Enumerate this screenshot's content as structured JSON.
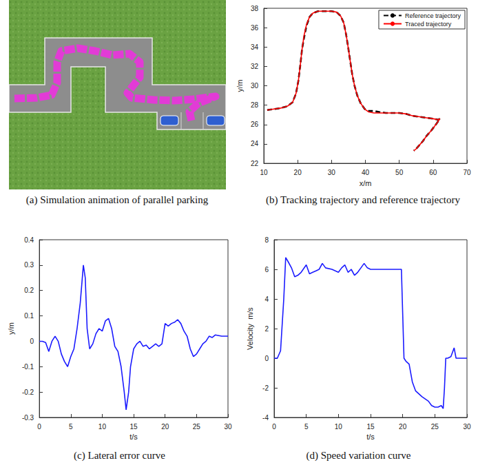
{
  "image_panel": {
    "caption": "(a) Simulation animation of parallel parking"
  },
  "chart_data": [
    {
      "type": "line",
      "title": "(b) Tracking trajectory and reference trajectory",
      "x_label": "x/m",
      "y_label": "y/m",
      "xlim": [
        10,
        70
      ],
      "xticks": [
        10,
        20,
        30,
        40,
        50,
        60,
        70
      ],
      "ylim": [
        22,
        38
      ],
      "yticks": [
        22,
        24,
        26,
        28,
        30,
        32,
        34,
        36,
        38
      ],
      "grid": false,
      "legend": "upper right",
      "series": [
        {
          "name": "Reference trajectory",
          "color": "#000000",
          "line_style": "dashed",
          "x": [
            11,
            13,
            15,
            17,
            18.5,
            19.5,
            20.2,
            20.8,
            21.3,
            21.9,
            22.6,
            23.5,
            24.5,
            26,
            28,
            30,
            31.5,
            32.7,
            33.6,
            34.3,
            34.9,
            35.5,
            36.1,
            36.8,
            37.6,
            38.6,
            39.8,
            41,
            42.5,
            44,
            46,
            48,
            50,
            52,
            54,
            56,
            58,
            60,
            61.5,
            62,
            61,
            59.5,
            58,
            57,
            56,
            55,
            54.3
          ],
          "values": [
            27.5,
            27.6,
            27.7,
            27.9,
            28.3,
            29.2,
            30.5,
            32.2,
            33.8,
            35.0,
            36.2,
            37.1,
            37.5,
            37.7,
            37.7,
            37.7,
            37.6,
            37.2,
            36.5,
            35.3,
            34,
            32.6,
            31.2,
            30,
            29,
            28.2,
            27.6,
            27.4,
            27.4,
            27.3,
            27.2,
            27.2,
            27.2,
            27.1,
            26.9,
            26.8,
            26.7,
            26.6,
            26.5,
            26.6,
            26.1,
            25.4,
            24.8,
            24.3,
            23.9,
            23.5,
            23.3
          ]
        },
        {
          "name": "Traced trajectory",
          "color": "#ff0000",
          "line_style": "solid",
          "x": [
            11,
            13,
            15,
            17,
            18.5,
            19.5,
            20.2,
            20.8,
            21.3,
            21.9,
            22.6,
            23.5,
            24.5,
            26,
            28,
            30,
            31.5,
            32.7,
            33.6,
            34.3,
            34.9,
            35.5,
            36.1,
            36.8,
            37.6,
            38.6,
            39.8,
            41,
            42.5,
            44,
            46,
            48,
            50,
            52,
            54,
            56,
            58,
            60,
            61.5,
            62,
            61,
            59.5,
            58,
            57,
            56,
            55,
            54.3
          ],
          "values": [
            27.5,
            27.6,
            27.7,
            27.9,
            28.3,
            29.2,
            30.5,
            32.2,
            33.8,
            35.2,
            36.3,
            37.1,
            37.5,
            37.7,
            37.7,
            37.7,
            37.6,
            37.2,
            36.5,
            35.3,
            34,
            32.6,
            31.2,
            30,
            29,
            28.2,
            27.6,
            27.3,
            27.2,
            27.2,
            27.2,
            27.2,
            27.2,
            27.1,
            26.9,
            26.8,
            26.7,
            26.6,
            26.5,
            26.6,
            26.1,
            25.4,
            24.8,
            24.3,
            23.9,
            23.5,
            23.3
          ]
        }
      ]
    },
    {
      "type": "line",
      "title": "(c) Lateral error curve",
      "x_label": "t/s",
      "y_label": "y/m",
      "xlim": [
        0,
        30
      ],
      "xticks": [
        0,
        5,
        10,
        15,
        20,
        25,
        30
      ],
      "ylim": [
        -0.3,
        0.4
      ],
      "yticks": [
        -0.3,
        -0.2,
        -0.1,
        0,
        0.1,
        0.2,
        0.3,
        0.4
      ],
      "grid": false,
      "series": [
        {
          "color": "#1a1aff",
          "line_style": "solid",
          "x": [
            0,
            0.5,
            1,
            1.5,
            2,
            2.5,
            3,
            3.5,
            4,
            4.5,
            5,
            5.5,
            6,
            6.5,
            7,
            7.3,
            7.6,
            8,
            8.5,
            9,
            9.5,
            10,
            10.5,
            11,
            11.5,
            12,
            12.5,
            13,
            13.5,
            13.8,
            14.2,
            14.5,
            15,
            15.5,
            16,
            16.5,
            17,
            17.5,
            18,
            18.5,
            19,
            19.5,
            20,
            20.5,
            21,
            21.5,
            22,
            22.5,
            23,
            23.5,
            24,
            24.5,
            25,
            25.5,
            26,
            26.5,
            27,
            27.5,
            28,
            29,
            30
          ],
          "values": [
            0,
            0,
            -0.005,
            -0.04,
            0,
            0.02,
            0,
            -0.05,
            -0.08,
            -0.1,
            -0.06,
            -0.03,
            0.05,
            0.15,
            0.3,
            0.25,
            0.05,
            -0.03,
            -0.01,
            0.03,
            0.05,
            0.04,
            0.08,
            0.09,
            0.05,
            -0.02,
            -0.04,
            -0.1,
            -0.2,
            -0.27,
            -0.2,
            -0.1,
            -0.03,
            -0.01,
            0,
            -0.02,
            -0.015,
            -0.03,
            -0.02,
            -0.01,
            -0.02,
            -0.01,
            0.07,
            0.06,
            0.07,
            0.075,
            0.085,
            0.07,
            0.04,
            0.02,
            -0.03,
            -0.06,
            -0.05,
            -0.03,
            -0.01,
            0,
            0.02,
            0.015,
            0.025,
            0.02,
            0.02
          ]
        }
      ]
    },
    {
      "type": "line",
      "title": "(d) Speed variation curve",
      "x_label": "t/s",
      "y_label": "Velocity  m/s",
      "xlim": [
        0,
        30
      ],
      "xticks": [
        0,
        5,
        10,
        15,
        20,
        25,
        30
      ],
      "ylim": [
        -4,
        8
      ],
      "yticks": [
        -4,
        -2,
        0,
        2,
        4,
        6,
        8
      ],
      "grid": false,
      "series": [
        {
          "color": "#1a1aff",
          "line_style": "solid",
          "x": [
            0,
            0.5,
            1,
            1.5,
            1.8,
            2.2,
            2.7,
            3.2,
            3.7,
            4.2,
            5,
            5.5,
            6,
            6.5,
            7,
            7.5,
            8,
            9,
            10,
            10.5,
            11,
            11.5,
            12,
            12.5,
            13,
            13.5,
            14,
            14.5,
            15,
            16,
            17,
            18,
            19,
            19.8,
            20,
            20.2,
            20.5,
            21,
            21.5,
            22,
            23,
            24,
            24.5,
            25,
            25.5,
            26,
            26.3,
            26.5,
            26.7,
            27,
            27.5,
            28,
            28.3,
            29,
            30
          ],
          "values": [
            0,
            0,
            0.5,
            4,
            6.8,
            6.5,
            6.1,
            5.5,
            5.6,
            5.8,
            6.3,
            5.7,
            5.8,
            5.9,
            6.0,
            6.4,
            6.1,
            6.0,
            5.8,
            6.1,
            6.3,
            5.8,
            6.0,
            5.6,
            5.8,
            6.1,
            6.4,
            6.1,
            6.0,
            6.0,
            6.0,
            6.0,
            6.0,
            6.0,
            3,
            0,
            -0.2,
            -0.4,
            -1.6,
            -2.2,
            -2.6,
            -2.9,
            -3.2,
            -3.3,
            -3.3,
            -3.2,
            -3.4,
            -2,
            0,
            0,
            0.1,
            0.7,
            0,
            0,
            0
          ]
        }
      ]
    }
  ]
}
